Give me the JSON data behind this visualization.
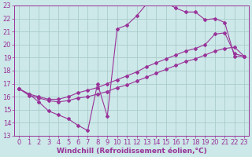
{
  "bg_color": "#cce8e8",
  "grid_color": "#aacccc",
  "line_color": "#993399",
  "xlabel": "Windchill (Refroidissement éolien,°C)",
  "xlim": [
    -0.5,
    23.5
  ],
  "ylim": [
    13,
    23
  ],
  "xticks": [
    0,
    1,
    2,
    3,
    4,
    5,
    6,
    7,
    8,
    9,
    10,
    11,
    12,
    13,
    14,
    15,
    16,
    17,
    18,
    19,
    20,
    21,
    22,
    23
  ],
  "yticks": [
    13,
    14,
    15,
    16,
    17,
    18,
    19,
    20,
    21,
    22,
    23
  ],
  "line1_x": [
    0,
    1,
    2,
    3,
    4,
    5,
    6,
    7,
    8,
    9,
    10,
    11,
    12,
    13,
    14,
    15,
    16,
    17,
    18,
    19,
    20,
    21,
    22,
    23
  ],
  "line1_y": [
    16.6,
    16.2,
    15.6,
    14.9,
    14.6,
    14.3,
    13.8,
    13.4,
    17.0,
    14.5,
    21.2,
    21.5,
    22.2,
    23.1,
    23.3,
    23.2,
    22.8,
    22.5,
    22.5,
    21.9,
    22.0,
    21.7,
    19.1,
    19.1
  ],
  "line2_x": [
    0,
    1,
    2,
    3,
    4,
    5,
    6,
    7,
    8,
    9,
    10,
    11,
    12,
    13,
    14,
    15,
    16,
    17,
    18,
    19,
    20,
    21,
    22,
    23
  ],
  "line2_y": [
    16.6,
    16.2,
    16.0,
    15.8,
    15.8,
    16.0,
    16.3,
    16.5,
    16.7,
    17.0,
    17.3,
    17.6,
    17.9,
    18.3,
    18.6,
    18.9,
    19.2,
    19.5,
    19.7,
    20.0,
    20.8,
    20.9,
    19.3,
    19.1
  ],
  "line3_x": [
    0,
    1,
    2,
    3,
    4,
    5,
    6,
    7,
    8,
    9,
    10,
    11,
    12,
    13,
    14,
    15,
    16,
    17,
    18,
    19,
    20,
    21,
    22,
    23
  ],
  "line3_y": [
    16.6,
    16.1,
    15.9,
    15.7,
    15.6,
    15.7,
    15.9,
    16.0,
    16.2,
    16.4,
    16.7,
    16.9,
    17.2,
    17.5,
    17.8,
    18.1,
    18.4,
    18.7,
    18.9,
    19.2,
    19.5,
    19.7,
    19.8,
    19.1
  ],
  "font_size_label": 6.5,
  "font_size_tick": 6.0
}
